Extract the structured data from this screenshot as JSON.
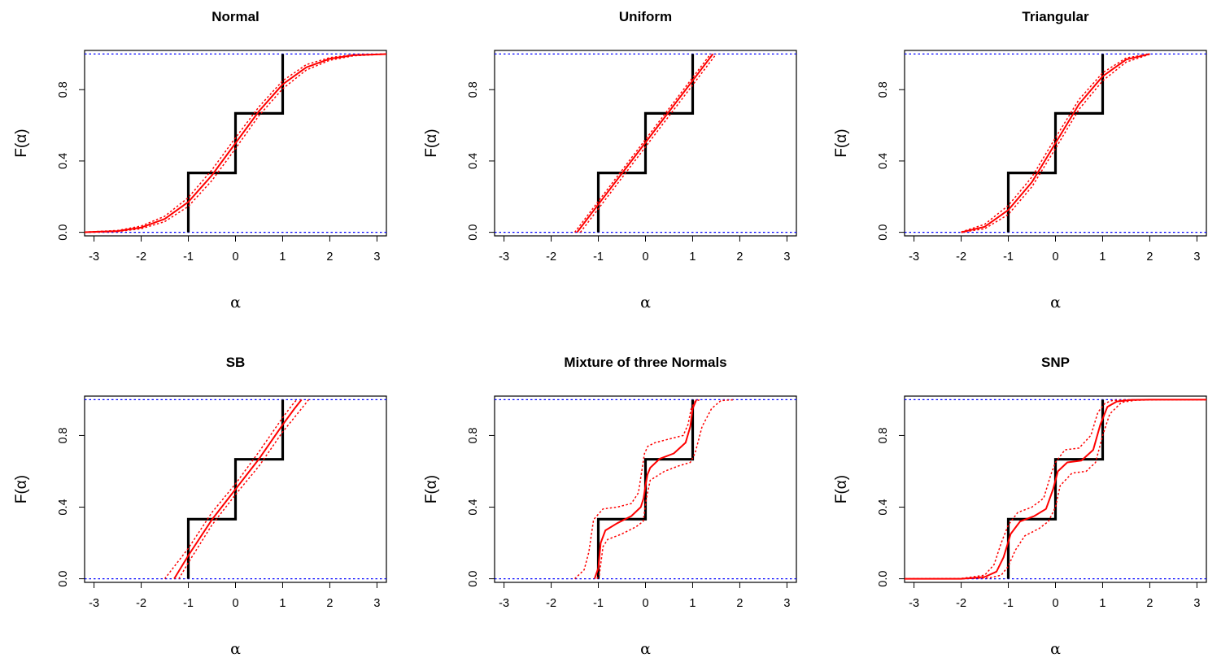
{
  "chart_data": [
    {
      "type": "line",
      "title": "Normal",
      "xlabel": "α",
      "ylabel": "F(α)",
      "xlim": [
        -3.2,
        3.2
      ],
      "ylim": [
        -0.02,
        1.02
      ],
      "xticks": [
        "-3",
        "-2",
        "-1",
        "0",
        "1",
        "2",
        "3"
      ],
      "yticks": [
        "0.0",
        "0.4",
        "0.8"
      ],
      "bounds": [
        0,
        1
      ],
      "colors": {
        "true": "#000000",
        "estimate": "#ff0000",
        "bound": "#0000ff"
      },
      "series": [
        {
          "role": "true-cdf",
          "x": [
            -1,
            -1,
            0,
            0,
            1,
            1
          ],
          "y": [
            0,
            0.333,
            0.333,
            0.667,
            0.667,
            1
          ]
        },
        {
          "role": "estimate",
          "x": [
            -3.2,
            -2.5,
            -2,
            -1.5,
            -1,
            -0.5,
            0,
            0.5,
            1,
            1.5,
            2,
            2.5,
            3.2
          ],
          "y": [
            0.0005,
            0.007,
            0.027,
            0.075,
            0.17,
            0.32,
            0.5,
            0.68,
            0.83,
            0.925,
            0.973,
            0.993,
            0.9995
          ]
        },
        {
          "role": "ci-upper",
          "x": [
            -3.2,
            -2.5,
            -2,
            -1.5,
            -1,
            -0.5,
            0,
            0.5,
            1,
            1.5,
            2,
            2.5,
            3.2
          ],
          "y": [
            0.001,
            0.01,
            0.035,
            0.09,
            0.195,
            0.35,
            0.53,
            0.705,
            0.85,
            0.94,
            0.98,
            0.996,
            1.0
          ]
        },
        {
          "role": "ci-lower",
          "x": [
            -3.2,
            -2.5,
            -2,
            -1.5,
            -1,
            -0.5,
            0,
            0.5,
            1,
            1.5,
            2,
            2.5,
            3.2
          ],
          "y": [
            0.0,
            0.004,
            0.02,
            0.06,
            0.145,
            0.29,
            0.47,
            0.655,
            0.805,
            0.91,
            0.965,
            0.99,
            0.999
          ]
        }
      ]
    },
    {
      "type": "line",
      "title": "Uniform",
      "xlabel": "α",
      "ylabel": "F(α)",
      "xlim": [
        -3.2,
        3.2
      ],
      "ylim": [
        -0.02,
        1.02
      ],
      "xticks": [
        "-3",
        "-2",
        "-1",
        "0",
        "1",
        "2",
        "3"
      ],
      "yticks": [
        "0.0",
        "0.4",
        "0.8"
      ],
      "bounds": [
        0,
        1
      ],
      "colors": {
        "true": "#000000",
        "estimate": "#ff0000",
        "bound": "#0000ff"
      },
      "series": [
        {
          "role": "true-cdf",
          "x": [
            -1,
            -1,
            0,
            0,
            1,
            1
          ],
          "y": [
            0,
            0.333,
            0.333,
            0.667,
            0.667,
            1
          ]
        },
        {
          "role": "estimate",
          "x": [
            -1.45,
            1.43
          ],
          "y": [
            0,
            1
          ]
        },
        {
          "role": "ci-upper",
          "x": [
            -1.5,
            1.38
          ],
          "y": [
            0,
            1
          ]
        },
        {
          "role": "ci-lower",
          "x": [
            -1.38,
            1.5
          ],
          "y": [
            0,
            1
          ]
        }
      ]
    },
    {
      "type": "line",
      "title": "Triangular",
      "xlabel": "α",
      "ylabel": "F(α)",
      "xlim": [
        -3.2,
        3.2
      ],
      "ylim": [
        -0.02,
        1.02
      ],
      "xticks": [
        "-3",
        "-2",
        "-1",
        "0",
        "1",
        "2",
        "3"
      ],
      "yticks": [
        "0.0",
        "0.4",
        "0.8"
      ],
      "bounds": [
        0,
        1
      ],
      "colors": {
        "true": "#000000",
        "estimate": "#ff0000",
        "bound": "#0000ff"
      },
      "series": [
        {
          "role": "true-cdf",
          "x": [
            -1,
            -1,
            0,
            0,
            1,
            1
          ],
          "y": [
            0,
            0.333,
            0.333,
            0.667,
            0.667,
            1
          ]
        },
        {
          "role": "estimate",
          "x": [
            -2,
            -1.5,
            -1,
            -0.5,
            0,
            0.5,
            1,
            1.5,
            2
          ],
          "y": [
            0,
            0.031,
            0.125,
            0.281,
            0.5,
            0.719,
            0.875,
            0.969,
            1
          ]
        },
        {
          "role": "ci-upper",
          "x": [
            -2,
            -1.5,
            -1,
            -0.5,
            0,
            0.5,
            1,
            1.5,
            2
          ],
          "y": [
            0.002,
            0.045,
            0.15,
            0.31,
            0.53,
            0.745,
            0.895,
            0.978,
            1
          ]
        },
        {
          "role": "ci-lower",
          "x": [
            -2,
            -1.5,
            -1,
            -0.5,
            0,
            0.5,
            1,
            1.5,
            2
          ],
          "y": [
            0,
            0.02,
            0.1,
            0.255,
            0.47,
            0.69,
            0.85,
            0.955,
            0.998
          ]
        }
      ]
    },
    {
      "type": "line",
      "title": "SB",
      "xlabel": "α",
      "ylabel": "F(α)",
      "xlim": [
        -3.2,
        3.2
      ],
      "ylim": [
        -0.02,
        1.02
      ],
      "xticks": [
        "-3",
        "-2",
        "-1",
        "0",
        "1",
        "2",
        "3"
      ],
      "yticks": [
        "0.0",
        "0.4",
        "0.8"
      ],
      "bounds": [
        0,
        1
      ],
      "colors": {
        "true": "#000000",
        "estimate": "#ff0000",
        "bound": "#0000ff"
      },
      "series": [
        {
          "role": "true-cdf",
          "x": [
            -1,
            -1,
            0,
            0,
            1,
            1
          ],
          "y": [
            0,
            0.333,
            0.333,
            0.667,
            0.667,
            1
          ]
        },
        {
          "role": "estimate",
          "x": [
            -1.3,
            -1,
            -0.5,
            0,
            0.5,
            1,
            1.25,
            1.4
          ],
          "y": [
            0,
            0.13,
            0.33,
            0.5,
            0.67,
            0.86,
            0.95,
            1
          ]
        },
        {
          "role": "ci-upper",
          "x": [
            -1.5,
            -1,
            -0.5,
            0,
            0.5,
            1,
            1.2,
            1.3
          ],
          "y": [
            0,
            0.17,
            0.37,
            0.53,
            0.71,
            0.9,
            0.97,
            1
          ]
        },
        {
          "role": "ci-lower",
          "x": [
            -1.2,
            -1,
            -0.5,
            0,
            0.5,
            1,
            1.4,
            1.55
          ],
          "y": [
            0,
            0.09,
            0.3,
            0.47,
            0.63,
            0.82,
            0.95,
            1
          ]
        }
      ]
    },
    {
      "type": "line",
      "title": "Mixture of three Normals",
      "xlabel": "α",
      "ylabel": "F(α)",
      "xlim": [
        -3.2,
        3.2
      ],
      "ylim": [
        -0.02,
        1.02
      ],
      "xticks": [
        "-3",
        "-2",
        "-1",
        "0",
        "1",
        "2",
        "3"
      ],
      "yticks": [
        "0.0",
        "0.4",
        "0.8"
      ],
      "bounds": [
        0,
        1
      ],
      "colors": {
        "true": "#000000",
        "estimate": "#ff0000",
        "bound": "#0000ff"
      },
      "series": [
        {
          "role": "true-cdf",
          "x": [
            -1,
            -1,
            0,
            0,
            1,
            1
          ],
          "y": [
            0,
            0.333,
            0.333,
            0.667,
            0.667,
            1
          ]
        },
        {
          "role": "estimate",
          "x": [
            -1.08,
            -1.0,
            -0.95,
            -0.85,
            -0.6,
            -0.3,
            -0.1,
            -0.04,
            0,
            0.04,
            0.1,
            0.3,
            0.6,
            0.85,
            0.95,
            1.0,
            1.08
          ],
          "y": [
            0,
            0.06,
            0.2,
            0.27,
            0.31,
            0.35,
            0.4,
            0.45,
            0.52,
            0.58,
            0.62,
            0.67,
            0.7,
            0.76,
            0.85,
            0.95,
            1.0
          ]
        },
        {
          "role": "ci-upper",
          "x": [
            -1.5,
            -1.3,
            -1.2,
            -1.1,
            -0.9,
            -0.6,
            -0.3,
            -0.15,
            -0.08,
            -0.02,
            0.05,
            0.2,
            0.5,
            0.8,
            0.9,
            0.97,
            1.05,
            1.15
          ],
          "y": [
            0,
            0.05,
            0.15,
            0.33,
            0.39,
            0.4,
            0.42,
            0.48,
            0.6,
            0.7,
            0.74,
            0.76,
            0.78,
            0.8,
            0.86,
            0.95,
            0.99,
            1.0
          ]
        },
        {
          "role": "ci-lower",
          "x": [
            -1.03,
            -0.98,
            -0.9,
            -0.8,
            -0.5,
            -0.2,
            -0.05,
            0.02,
            0.1,
            0.4,
            0.7,
            0.95,
            1.05,
            1.2,
            1.4,
            1.6,
            1.9
          ],
          "y": [
            0,
            0.02,
            0.18,
            0.22,
            0.25,
            0.29,
            0.32,
            0.45,
            0.55,
            0.6,
            0.63,
            0.65,
            0.7,
            0.85,
            0.95,
            0.995,
            1.0
          ]
        }
      ]
    },
    {
      "type": "line",
      "title": "SNP",
      "xlabel": "α",
      "ylabel": "F(α)",
      "xlim": [
        -3.2,
        3.2
      ],
      "ylim": [
        -0.02,
        1.02
      ],
      "xticks": [
        "-3",
        "-2",
        "-1",
        "0",
        "1",
        "2",
        "3"
      ],
      "yticks": [
        "0.0",
        "0.4",
        "0.8"
      ],
      "bounds": [
        0,
        1
      ],
      "colors": {
        "true": "#000000",
        "estimate": "#ff0000",
        "bound": "#0000ff"
      },
      "series": [
        {
          "role": "true-cdf",
          "x": [
            -1,
            -1,
            0,
            0,
            1,
            1
          ],
          "y": [
            0,
            0.333,
            0.333,
            0.667,
            0.667,
            1
          ]
        },
        {
          "role": "estimate",
          "x": [
            -3.2,
            -2,
            -1.5,
            -1.25,
            -1.1,
            -0.95,
            -0.75,
            -0.45,
            -0.2,
            -0.05,
            0.05,
            0.25,
            0.55,
            0.8,
            0.95,
            1.1,
            1.3,
            1.6,
            2,
            3.2
          ],
          "y": [
            0,
            0.0,
            0.01,
            0.04,
            0.12,
            0.25,
            0.32,
            0.35,
            0.39,
            0.5,
            0.6,
            0.65,
            0.66,
            0.72,
            0.86,
            0.96,
            0.99,
            0.998,
            1,
            1
          ]
        },
        {
          "role": "ci-upper",
          "x": [
            -3.2,
            -2,
            -1.5,
            -1.3,
            -1.15,
            -1,
            -0.8,
            -0.5,
            -0.25,
            -0.1,
            0.0,
            0.2,
            0.5,
            0.75,
            0.9,
            1.05,
            1.2,
            1.5,
            2,
            3.2
          ],
          "y": [
            0,
            0.002,
            0.02,
            0.08,
            0.2,
            0.3,
            0.37,
            0.4,
            0.45,
            0.58,
            0.65,
            0.72,
            0.73,
            0.8,
            0.93,
            0.98,
            0.995,
            0.999,
            1,
            1
          ]
        },
        {
          "role": "ci-lower",
          "x": [
            -3.2,
            -2,
            -1.4,
            -1.15,
            -1.0,
            -0.85,
            -0.65,
            -0.35,
            -0.15,
            0.0,
            0.1,
            0.35,
            0.65,
            0.85,
            1.0,
            1.15,
            1.4,
            1.7,
            2.2,
            3.2
          ],
          "y": [
            0,
            0,
            0.005,
            0.02,
            0.07,
            0.16,
            0.24,
            0.28,
            0.32,
            0.4,
            0.52,
            0.59,
            0.6,
            0.65,
            0.8,
            0.92,
            0.985,
            0.997,
            1,
            1
          ]
        }
      ]
    }
  ]
}
